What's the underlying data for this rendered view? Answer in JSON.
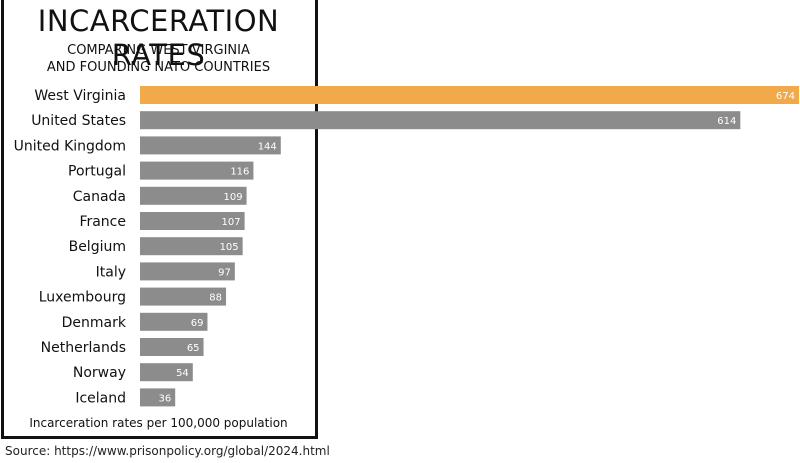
{
  "chart_data": {
    "type": "bar",
    "orientation": "horizontal",
    "title": "INCARCERATION RATES",
    "subtitle_lines": [
      "COMPARING WEST VIRGINIA",
      "AND FOUNDING NATO COUNTRIES"
    ],
    "categories": [
      "West Virginia",
      "United States",
      "United Kingdom",
      "Portugal",
      "Canada",
      "France",
      "Belgium",
      "Italy",
      "Luxembourg",
      "Denmark",
      "Netherlands",
      "Norway",
      "Iceland"
    ],
    "values": [
      674,
      614,
      144,
      116,
      109,
      107,
      105,
      97,
      88,
      69,
      65,
      54,
      36
    ],
    "highlight_category": "West Virginia",
    "xlim": [
      0,
      674
    ],
    "grid": false,
    "footnote": "Incarceration rates per 100,000 population",
    "source": "Source: https://www.prisonpolicy.org/global/2024.html"
  },
  "colors": {
    "highlight": "#F2A94A",
    "bar": "#8C8C8C",
    "text": "#111111",
    "value_text": "#ffffff"
  }
}
